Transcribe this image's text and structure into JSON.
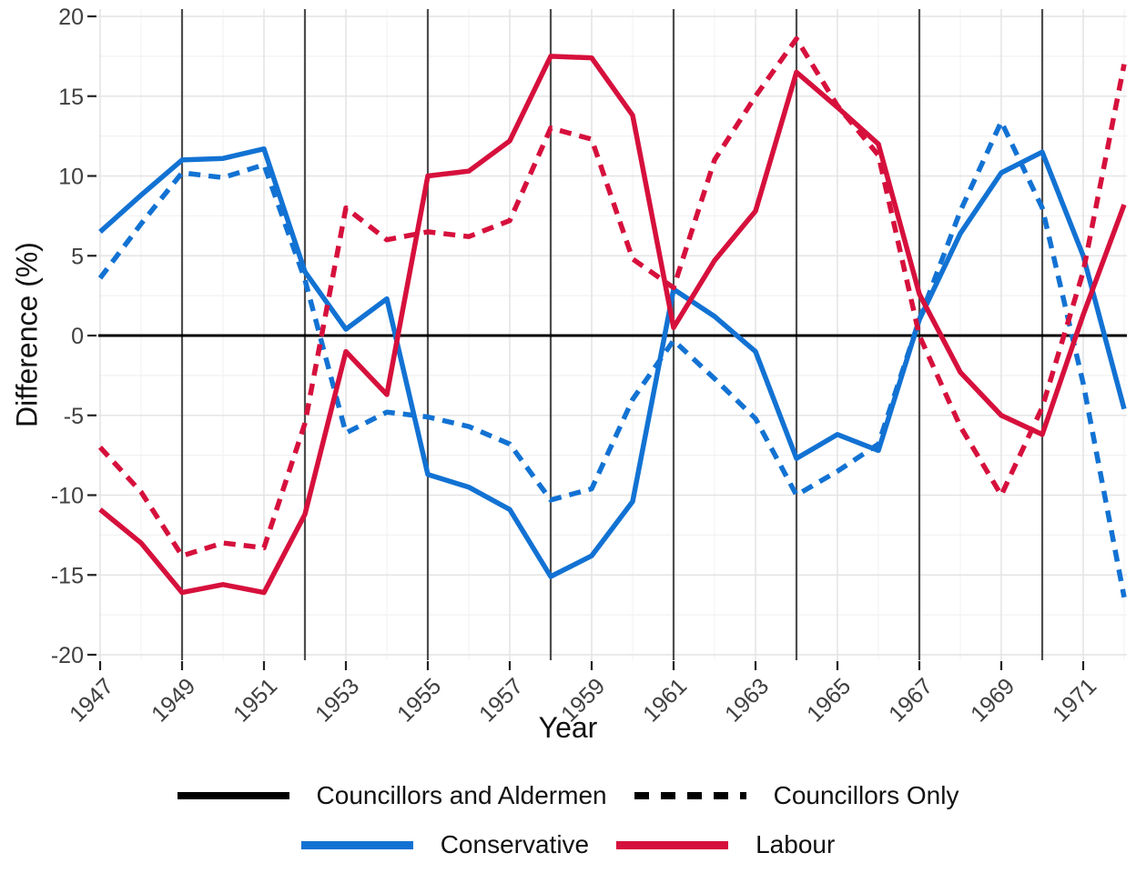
{
  "figure": {
    "background": "#ffffff"
  },
  "chart_data": {
    "type": "line",
    "title": "",
    "xlabel": "Year",
    "ylabel": "Difference (%)",
    "x_range": [
      1947,
      1972
    ],
    "ylim": [
      -20,
      20
    ],
    "grid": {
      "on": true,
      "major_color": "#e4e4e4",
      "minor_color": "#f2f2f2"
    },
    "x_tick_years": [
      1947,
      1949,
      1951,
      1953,
      1955,
      1957,
      1959,
      1961,
      1963,
      1965,
      1967,
      1969,
      1971
    ],
    "y_ticks": [
      -20,
      -15,
      -10,
      -5,
      0,
      5,
      10,
      15,
      20
    ],
    "y_minor_step": 2.5,
    "reference_lines": {
      "zero_hline": 0,
      "zero_hline_color": "#000000",
      "vline_years": [
        1949,
        1952,
        1955,
        1958,
        1961,
        1964,
        1967,
        1970
      ],
      "vline_color": "#4d4d4d"
    },
    "years": [
      1947,
      1948,
      1949,
      1950,
      1951,
      1952,
      1953,
      1954,
      1955,
      1956,
      1957,
      1958,
      1959,
      1960,
      1961,
      1962,
      1963,
      1964,
      1965,
      1966,
      1967,
      1968,
      1969,
      1970,
      1971,
      1972
    ],
    "series": [
      {
        "id": "conservative-councillors-and-aldermen",
        "party": "Conservative",
        "linetype": "Councillors and Aldermen",
        "color": "#1272d3",
        "dash": "solid",
        "values": [
          6.5,
          8.8,
          11.0,
          11.1,
          11.7,
          4.0,
          0.4,
          2.3,
          -8.7,
          -9.5,
          -10.9,
          -15.1,
          -13.8,
          -10.4,
          2.9,
          1.2,
          -1.0,
          -7.7,
          -6.2,
          -7.2,
          1.0,
          6.4,
          10.2,
          11.5,
          5.0,
          -4.6
        ]
      },
      {
        "id": "conservative-councillors-only",
        "party": "Conservative",
        "linetype": "Councillors Only",
        "color": "#1272d3",
        "dash": "dashed",
        "values": [
          3.6,
          7.0,
          10.2,
          9.9,
          10.7,
          3.5,
          -6.1,
          -4.8,
          -5.1,
          -5.7,
          -6.8,
          -10.3,
          -9.6,
          -4.0,
          -0.3,
          -2.7,
          -5.2,
          -10.0,
          -8.5,
          -6.8,
          1.0,
          7.8,
          13.4,
          8.0,
          -3.0,
          -16.4
        ]
      },
      {
        "id": "labour-councillors-and-aldermen",
        "party": "Labour",
        "linetype": "Councillors and Aldermen",
        "color": "#d6103c",
        "dash": "solid",
        "values": [
          -10.9,
          -13.0,
          -16.1,
          -15.6,
          -16.1,
          -11.2,
          -1.0,
          -3.7,
          10.0,
          10.3,
          12.2,
          17.5,
          17.4,
          13.8,
          0.5,
          4.7,
          7.8,
          16.5,
          14.3,
          12.0,
          2.6,
          -2.3,
          -5.0,
          -6.2,
          1.3,
          8.2
        ]
      },
      {
        "id": "labour-councillors-only",
        "party": "Labour",
        "linetype": "Councillors Only",
        "color": "#d6103c",
        "dash": "dashed",
        "values": [
          -7.0,
          -9.8,
          -13.8,
          -13.0,
          -13.3,
          -5.5,
          8.0,
          6.0,
          6.5,
          6.2,
          7.2,
          13.0,
          12.3,
          4.8,
          3.0,
          11.0,
          15.0,
          18.6,
          14.4,
          11.3,
          0.0,
          -5.7,
          -10.0,
          -4.5,
          4.0,
          17.0
        ]
      }
    ],
    "legend": {
      "position": "bottom",
      "linetype": [
        {
          "label": "Councillors and Aldermen",
          "dash": "solid"
        },
        {
          "label": "Councillors Only",
          "dash": "dashed"
        }
      ],
      "colour": [
        {
          "label": "Conservative",
          "color": "#1272d3"
        },
        {
          "label": "Labour",
          "color": "#d6103c"
        }
      ]
    }
  }
}
